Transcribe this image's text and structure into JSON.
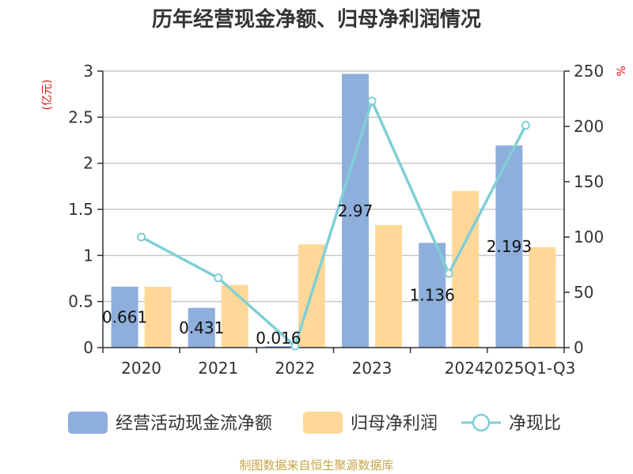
{
  "title": "历年经营现金净额、归母净利润情况",
  "source": "制图数据来自恒生聚源数据库",
  "colors": {
    "cash_flow": "#8eaedb",
    "net_profit": "#ffd899",
    "ratio": "#7fcfd6",
    "grid": "#c8c8c8",
    "axis": "#333333",
    "unit": "#e01010"
  },
  "chart_data": {
    "type": "bar",
    "title": "历年经营现金净额、归母净利润情况",
    "categories": [
      "2020",
      "2021",
      "2022",
      "2023",
      "2024",
      "2025Q1-Q3"
    ],
    "series": [
      {
        "name": "经营活动现金流净额",
        "type": "bar",
        "axis": "left",
        "values": [
          0.661,
          0.431,
          0.016,
          2.97,
          1.136,
          2.193
        ],
        "labels": [
          "0.661",
          "0.431",
          "0.016",
          "2.97",
          "1.136",
          "2.193"
        ]
      },
      {
        "name": "归母净利润",
        "type": "bar",
        "axis": "left",
        "values": [
          0.66,
          0.68,
          1.12,
          1.33,
          1.7,
          1.09
        ]
      },
      {
        "name": "净现比",
        "type": "line",
        "axis": "right",
        "values": [
          100,
          63,
          1.4,
          223,
          67,
          201
        ]
      }
    ],
    "y_left": {
      "unit": "(亿元)",
      "ylim": [
        0,
        3
      ],
      "ticks": [
        "0",
        "0.5",
        "1",
        "1.5",
        "2",
        "2.5",
        "3"
      ]
    },
    "y_right": {
      "unit": "%",
      "ylim": [
        0,
        250
      ],
      "ticks": [
        "0",
        "50",
        "100",
        "150",
        "200",
        "250"
      ]
    },
    "grid": true,
    "legend_position": "bottom"
  }
}
